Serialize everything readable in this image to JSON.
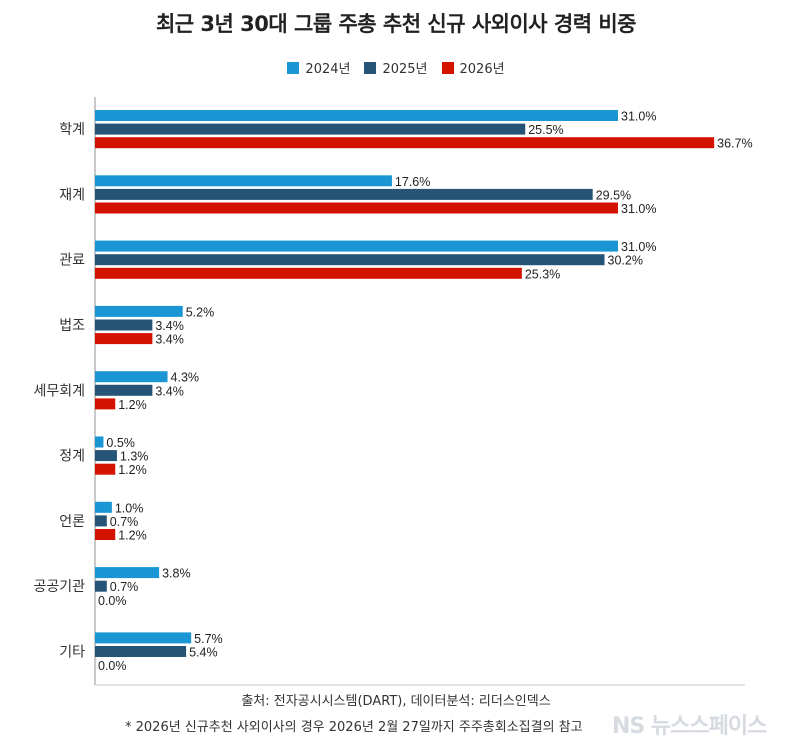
{
  "chart_data": {
    "type": "bar",
    "orientation": "horizontal",
    "title": "최근 3년 30대 그룹 주총 추천 신규 사외이사 경력 비중",
    "categories": [
      "학계",
      "재계",
      "관료",
      "법조",
      "세무회계",
      "정계",
      "언론",
      "공공기관",
      "기타"
    ],
    "series": [
      {
        "name": "2024년",
        "color": "#1a96d4",
        "values": [
          31.0,
          17.6,
          31.0,
          5.2,
          4.3,
          0.5,
          1.0,
          3.8,
          5.7
        ]
      },
      {
        "name": "2025년",
        "color": "#255476",
        "values": [
          25.5,
          29.5,
          30.2,
          3.4,
          3.4,
          1.3,
          0.7,
          0.7,
          5.4
        ]
      },
      {
        "name": "2026년",
        "color": "#d41200",
        "values": [
          36.7,
          31.0,
          25.3,
          3.4,
          1.2,
          1.2,
          1.2,
          0.0,
          0.0
        ]
      }
    ],
    "value_suffix": "%",
    "xlim": [
      0,
      38.5
    ],
    "legend_position": "top-center",
    "grid": false
  },
  "footer": {
    "source": "출처: 전자공시시스템(DART), 데이터분석: 리더스인덱스",
    "note": "* 2026년 신규추천 사외이사의 경우 2026년 2월 27일까지 주주총회소집결의 참고",
    "watermark": "NS 뉴스스페이스"
  }
}
